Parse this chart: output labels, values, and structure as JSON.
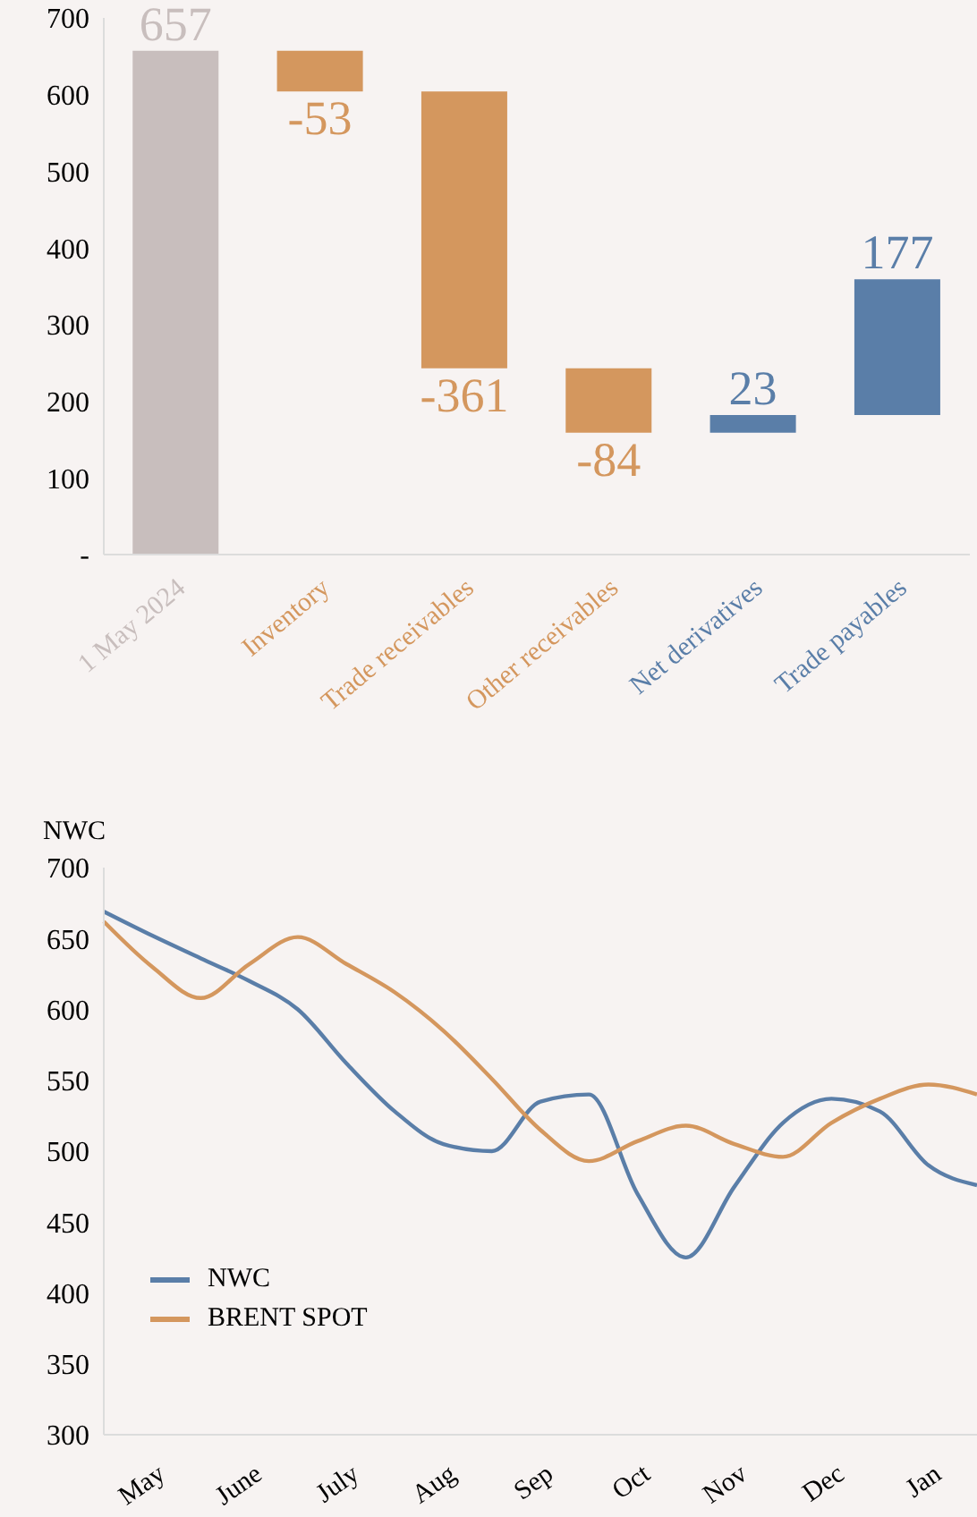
{
  "chart_data": [
    {
      "type": "bar",
      "categories": [
        "1 May 2024",
        "Inventory",
        "Trade receivables",
        "Other receivables",
        "Net derivatives",
        "Trade payables"
      ],
      "values": [
        657,
        -53,
        -361,
        -84,
        23,
        177
      ],
      "base": [
        0,
        657,
        604,
        243,
        159,
        182
      ],
      "colors": [
        "#c8bebd",
        "#d4975e",
        "#d4975e",
        "#d4975e",
        "#5a7ea8",
        "#5a7ea8"
      ],
      "ylim": [
        0,
        700
      ],
      "yticks": [
        {
          "value": 0,
          "label": "-"
        },
        100,
        200,
        300,
        400,
        500,
        600,
        700
      ],
      "grid": false,
      "data_labels": true,
      "legend": false
    },
    {
      "type": "line",
      "ylabel": "NWC",
      "categories": [
        null,
        "May",
        null,
        "June",
        null,
        "July",
        null,
        "Aug",
        null,
        "Sep",
        null,
        "Oct",
        null,
        "Nov",
        null,
        "Dec",
        null,
        "Jan",
        null
      ],
      "ylim": [
        300,
        700
      ],
      "yticks": [
        300,
        350,
        400,
        450,
        500,
        550,
        600,
        650,
        700
      ],
      "grid": false,
      "legend": "bottom left",
      "marker": "none",
      "line_style": "solid",
      "series": [
        {
          "name": "NWC",
          "color": "#5a7ea8",
          "values": [
            669,
            652,
            636,
            620,
            600,
            562,
            528,
            505,
            500,
            535,
            540,
            470,
            425,
            475,
            520,
            537,
            528,
            490,
            476
          ]
        },
        {
          "name": "BRENT SPOT",
          "color": "#d4975e",
          "values": [
            662,
            630,
            608,
            632,
            651,
            632,
            612,
            585,
            551,
            515,
            493,
            507,
            518,
            505,
            496,
            520,
            537,
            547,
            540
          ]
        }
      ]
    }
  ]
}
